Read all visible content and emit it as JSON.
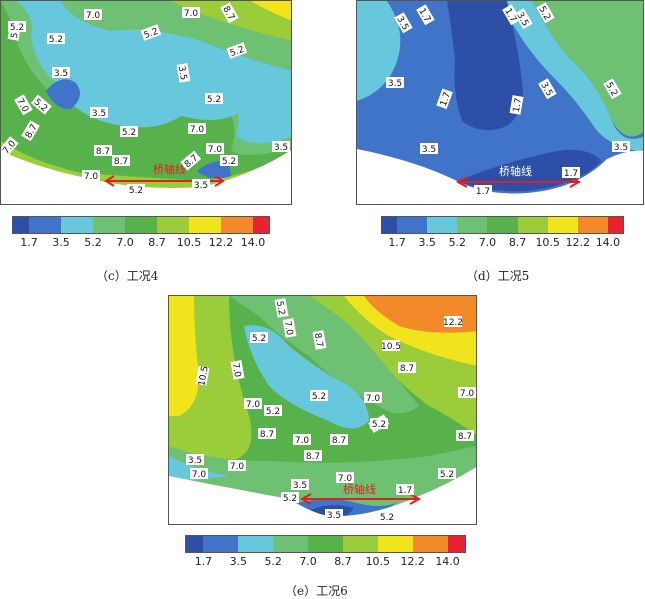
{
  "colors": {
    "c1": "#2e4fa8",
    "c2": "#3f74c8",
    "c3": "#67c7dd",
    "c4": "#6ec072",
    "c5": "#58b24c",
    "c6": "#9bcc3a",
    "c7": "#f2e41c",
    "c8": "#f28a2a",
    "c9": "#e8222e",
    "axis": "#e02020"
  },
  "legend": {
    "ticks": [
      "1.7",
      "3.5",
      "5.2",
      "7.0",
      "8.7",
      "10.5",
      "12.2",
      "14.0"
    ]
  },
  "panels": {
    "c": {
      "caption": "（c）工况4",
      "axis_label": "桥轴线",
      "labels": [
        "7.0",
        "7.0",
        "8.7",
        "5.2",
        "5.2",
        "5.2",
        "5.2",
        "3.5",
        "3.5",
        "3.5",
        "5.2",
        "7.0",
        "5.2",
        "8.7",
        "5.2",
        "7.0",
        "7.0",
        "8.7",
        "8.7",
        "8.7",
        "7.0",
        "5.2",
        "3.5",
        "5.2",
        "3.5",
        "7.0",
        "5.2"
      ]
    },
    "d": {
      "caption": "（d）工况5",
      "axis_label": "桥轴线",
      "labels": [
        "3.5",
        "1.7",
        "1.7",
        "3.5",
        "5.2",
        "3.5",
        "1.7",
        "1.7",
        "3.5",
        "5.2",
        "3.5",
        "3.5",
        "1.7",
        "1.7"
      ]
    },
    "e": {
      "caption": "（e）工况6",
      "axis_label": "桥轴线",
      "labels": [
        "5.2",
        "7.0",
        "8.7",
        "12.2",
        "10.5",
        "8.7",
        "7.0",
        "10.5",
        "5.2",
        "7.0",
        "5.2",
        "8.7",
        "7.0",
        "8.7",
        "7.0",
        "8.7",
        "5.2",
        "8.7",
        "7.0",
        "8.7",
        "5.2",
        "3.5",
        "7.0",
        "7.0",
        "7.0",
        "5.2",
        "3.5",
        "5.2",
        "1.7",
        "3.5",
        "5.2"
      ]
    }
  }
}
